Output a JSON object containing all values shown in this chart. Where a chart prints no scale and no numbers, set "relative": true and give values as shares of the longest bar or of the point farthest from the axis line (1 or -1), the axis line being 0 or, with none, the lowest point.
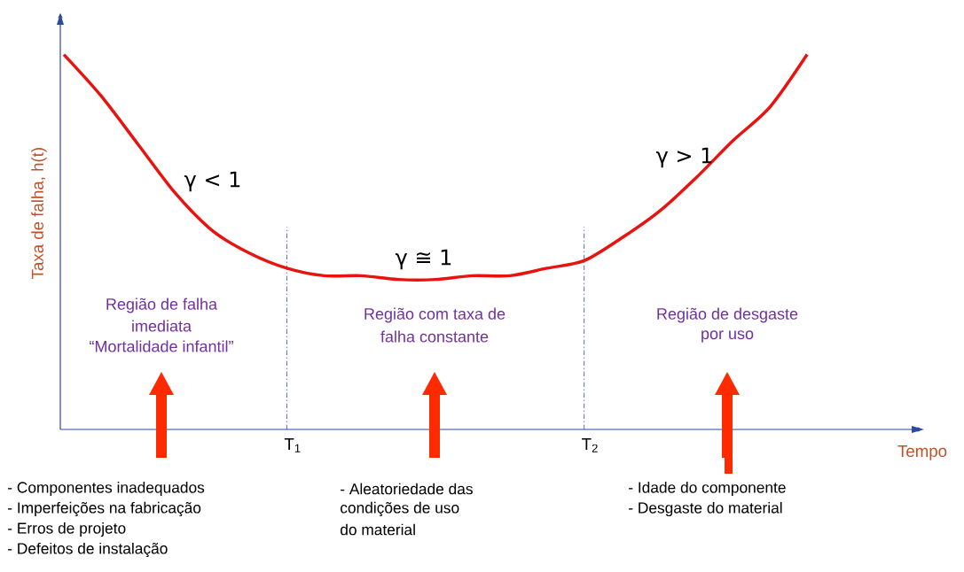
{
  "chart_data": {
    "type": "line",
    "relative": true,
    "ylabel": "Taxa de falha, h(t)",
    "xlabel": "Tempo",
    "categories": [
      null,
      null,
      null,
      null,
      null,
      null,
      "T$_{1}$",
      null,
      null,
      null,
      null,
      null,
      null,
      null,
      "T$_{2}$",
      null,
      null,
      null,
      null,
      null,
      null
    ],
    "series": [
      {
        "color": "#e8130e",
        "values": [
          1.0,
          0.89,
          0.76,
          0.63,
          0.53,
          0.47,
          0.43,
          0.41,
          0.41,
          0.4,
          0.4,
          0.41,
          0.41,
          0.43,
          0.45,
          0.51,
          0.58,
          0.67,
          0.77,
          0.86,
          1.0
        ]
      }
    ],
    "ref_lines": [
      {
        "axis": "x",
        "value": "T$_{1}$",
        "color": "#2e4a9a",
        "line_style": "dashed"
      },
      {
        "axis": "x",
        "value": "T$_{2}$",
        "color": "#2e4a9a",
        "line_style": "dashed"
      }
    ],
    "annotations": [
      "γ < 1",
      "γ ≅ 1",
      "γ > 1",
      "Região de falha",
      "imediata",
      "“Mortalidade infantil”",
      "Região com taxa de",
      "falha constante",
      "Região de desgaste",
      "por uso",
      "- Componentes inadequados",
      "- Imperfeições na fabricação",
      "- Erros de projeto",
      "- Defeitos de instalação",
      "- Aleatoriedade das",
      "condições de uso",
      "do material",
      "- Idade do componente",
      "- Desgaste do material"
    ]
  }
}
